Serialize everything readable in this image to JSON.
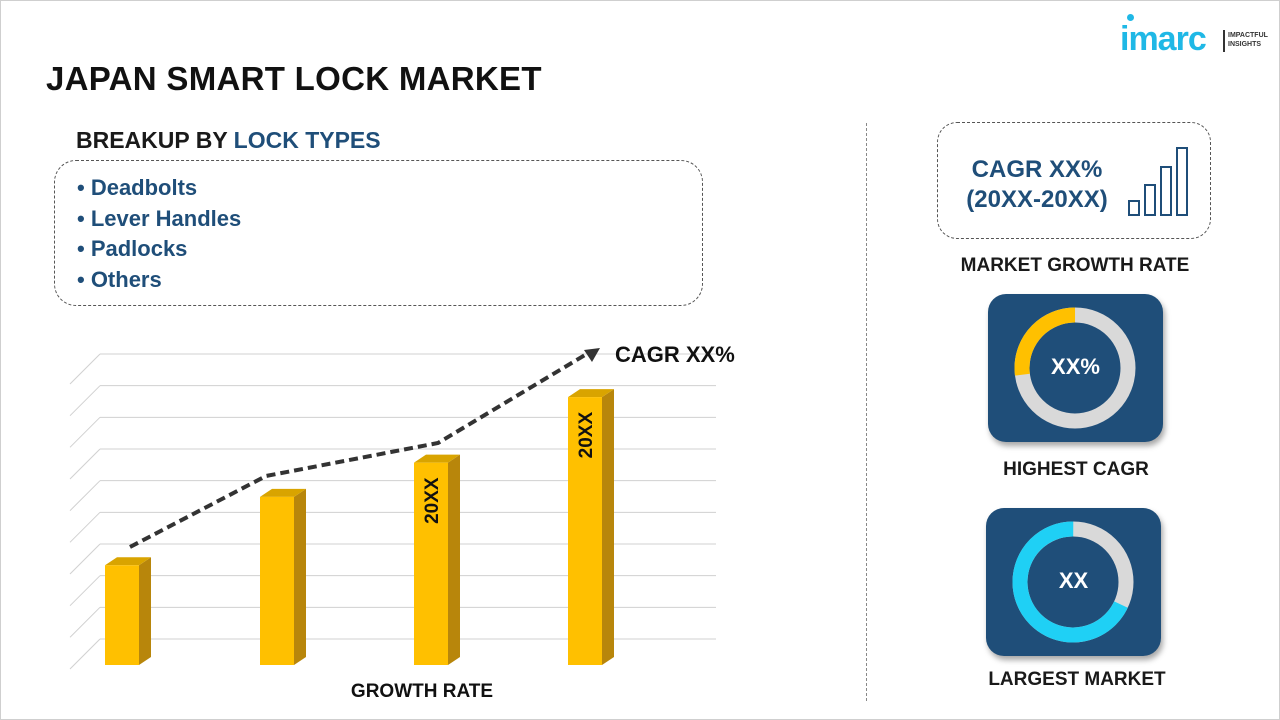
{
  "title": "JAPAN SMART LOCK MARKET",
  "logo": {
    "brand": "imarc",
    "tagline": "IMPACTFUL INSIGHTS"
  },
  "breakup": {
    "prefix": "BREAKUP BY",
    "highlight": "LOCK TYPES",
    "items": [
      "• Deadbolts",
      "• Lever Handles",
      "• Padlocks",
      "• Others"
    ]
  },
  "market_growth": {
    "line1": "CAGR XX%",
    "line2": "(20XX-20XX)",
    "label": "MARKET GROWTH RATE",
    "icon": "bar-chart-icon"
  },
  "highest_cagr": {
    "value": "XX%",
    "label": "HIGHEST CAGR",
    "fill_percent": 27,
    "color": "#ffc000"
  },
  "largest_market": {
    "value": "XX",
    "label": "LARGEST MARKET",
    "fill_percent": 68,
    "color": "#1fd0f5"
  },
  "chart_data": {
    "type": "bar",
    "xlabel": "GROWTH RATE",
    "trend_label": "CAGR XX%",
    "bar_labels": [
      "",
      "",
      "20XX",
      "20XX"
    ],
    "values": [
      35,
      59,
      71,
      94
    ],
    "ylim": [
      0,
      100
    ],
    "grid": true,
    "bar_color": "#ffc000"
  },
  "colors": {
    "navy": "#1f4e79",
    "accent": "#1fb8e6",
    "ring_track": "#d9d9d9"
  }
}
